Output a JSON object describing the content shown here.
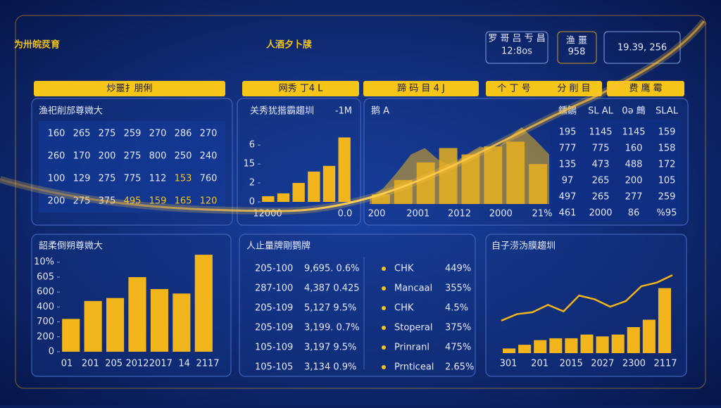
{
  "header": {
    "title_left": "为卅皖烎育",
    "title_right": "人酒夕卜牍",
    "clock": {
      "caption": "罗 哥 吕 亐 昌",
      "value": "12:8os"
    },
    "counter": {
      "caption": "渔 噩",
      "value": "958"
    },
    "stamp": "19.39, 256"
  },
  "tabs": [
    "炒噩扌朋俐",
    "网秀 丁4 L",
    "蹄 码 目 4 J",
    "个 丁 号",
    "分 削 目",
    "费 鹰 霉"
  ],
  "table_panel": {
    "title": "渔祀削邡尊媺大",
    "rows": [
      [
        "160",
        "265",
        "275",
        "259",
        "270",
        "286",
        "270"
      ],
      [
        "260",
        "170",
        "200",
        "275",
        "800",
        "250",
        "240"
      ],
      [
        "100",
        "129",
        "275",
        "775",
        "112",
        "153",
        "760"
      ],
      [
        "200",
        "275",
        "375",
        "495",
        "159",
        "165",
        "120"
      ]
    ]
  },
  "bar_panel": {
    "type": "bar",
    "title": "关秀犹揩霸趨圳",
    "unit": "-1M",
    "color": "#f2b61c",
    "values": [
      0.3,
      0.45,
      1.0,
      1.6,
      1.9,
      3.4
    ],
    "ylim": [
      0,
      3.6
    ],
    "yticks": [
      0,
      {
        "value": 1,
        "label": "2"
      },
      {
        "value": 2,
        "label": "15"
      },
      {
        "value": 3,
        "label": "6"
      }
    ],
    "xlabels": [
      "12000",
      "0.0"
    ]
  },
  "area_panel": {
    "type": "area",
    "title": "鹅 A",
    "color": "#e8b020",
    "area": [
      8,
      20,
      40,
      62,
      70,
      55,
      48,
      62,
      72,
      66,
      82,
      96,
      80,
      62
    ],
    "bars": [
      12,
      30,
      52,
      70,
      62,
      72,
      78,
      50
    ],
    "ylim": [
      0,
      110
    ],
    "xlabels": [
      "200",
      "2001",
      "2012",
      "2000",
      "21%"
    ]
  },
  "side_table": {
    "header": [
      "鑂鶵",
      "SL AL",
      "0ə 鷓",
      "SLAL"
    ],
    "rows": [
      [
        "195",
        "1145",
        "1145",
        "159"
      ],
      [
        "777",
        "775",
        "160",
        "158"
      ],
      [
        "135",
        "473",
        "488",
        "172"
      ],
      [
        "97",
        "265",
        "200",
        "105"
      ],
      [
        "497",
        "265",
        "277",
        "259"
      ],
      [
        "461",
        "2000",
        "86",
        "%95"
      ]
    ]
  },
  "bar_panel2": {
    "type": "bar",
    "title": "韶柔倒朔尊媺大",
    "color": "#f2b61c",
    "values": [
      2.2,
      3.4,
      3.6,
      5.0,
      4.2,
      3.9,
      6.5
    ],
    "ylim": [
      0,
      6.6
    ],
    "yticks": [
      {
        "value": 0,
        "label": "0"
      },
      {
        "value": 1,
        "label": "200"
      },
      {
        "value": 2,
        "label": "700"
      },
      {
        "value": 3,
        "label": "400"
      },
      {
        "value": 4,
        "label": "600"
      },
      {
        "value": 5,
        "label": "605"
      },
      {
        "value": 6,
        "label": "10%"
      }
    ],
    "xlabels": [
      "01",
      "201",
      "205",
      "2012",
      "2017",
      "14",
      "2117"
    ]
  },
  "list_panel": {
    "title": "人止量牌剛鹦牌",
    "rows": [
      [
        "205-100",
        "9,695. 0.6%"
      ],
      [
        "287-100",
        "4,387 0.425"
      ],
      [
        "205-109",
        "5,127 9.5%"
      ],
      [
        "205-109",
        "3,199. 0.7%"
      ],
      [
        "105-109",
        "3,197 9.5%"
      ],
      [
        "105-105",
        "3,134 0.9%"
      ]
    ],
    "legend": [
      [
        "CHK",
        "449%"
      ],
      [
        "Mancaal",
        "355%"
      ],
      [
        "CHK",
        "4.5%"
      ],
      [
        "Stoperal",
        "375%"
      ],
      [
        "Prinranl",
        "475%"
      ],
      [
        "Prnticeal",
        "2.65%"
      ]
    ]
  },
  "combo_panel": {
    "type": "combo",
    "title": "自子涝沩膜趨圳",
    "color": "#f2b61c",
    "bars": [
      5,
      9,
      14,
      16,
      16,
      20,
      18,
      20,
      28,
      36,
      70
    ],
    "line": [
      35,
      42,
      44,
      52,
      45,
      62,
      58,
      50,
      56,
      72,
      76,
      84
    ],
    "ylim": [
      0,
      100
    ],
    "xlabels": [
      "301",
      "201",
      "2015",
      "2027",
      "2300",
      "2117"
    ]
  }
}
